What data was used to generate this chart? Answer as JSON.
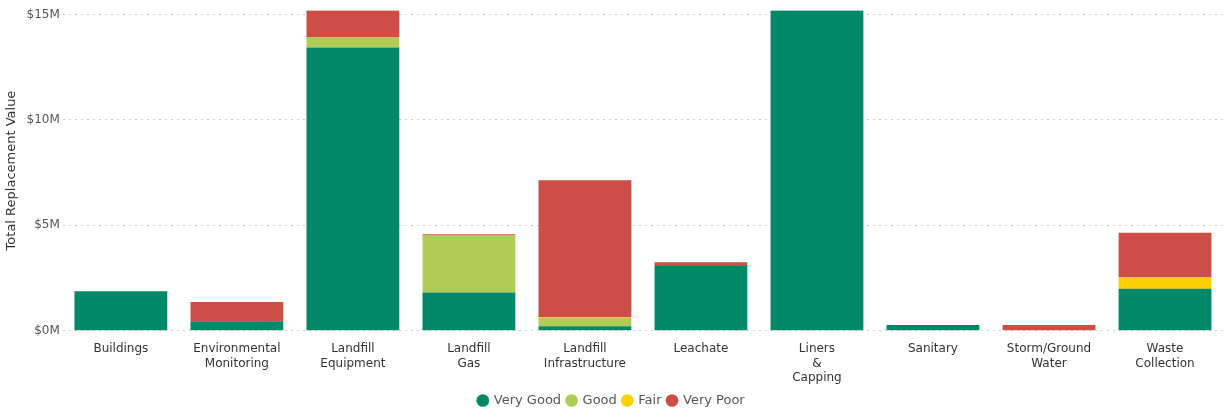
{
  "chart_data": {
    "type": "bar",
    "stacked": true,
    "ylabel": "Total Replacement Value",
    "categories": [
      "Buildings",
      "Environmental Monitoring",
      "Landfill Equipment",
      "Landfill Gas",
      "Landfill Infrastructure",
      "Leachate",
      "Liners & Capping",
      "Sanitary",
      "Storm/Ground Water",
      "Waste Collection"
    ],
    "series": [
      {
        "name": "Very Good",
        "color": "#008868",
        "values": [
          1.88,
          0.45,
          13.43,
          1.82,
          0.21,
          3.07,
          15.18,
          0.27,
          null,
          1.99
        ]
      },
      {
        "name": "Good",
        "color": "#b0cb56",
        "values": [
          null,
          null,
          0.5,
          2.7,
          0.4,
          null,
          null,
          null,
          null,
          null
        ]
      },
      {
        "name": "Fair",
        "color": "#fccf00",
        "values": [
          null,
          null,
          null,
          null,
          0.05,
          null,
          null,
          null,
          null,
          0.56
        ]
      },
      {
        "name": "Very Poor",
        "color": "#cd4d47",
        "values": [
          null,
          0.91,
          1.25,
          0.06,
          6.48,
          0.18,
          null,
          null,
          0.27,
          2.1
        ]
      }
    ],
    "ylim": [
      0,
      15.2
    ],
    "yticks": [
      {
        "value": 0,
        "label": "$0M"
      },
      {
        "value": 5,
        "label": "$5M"
      },
      {
        "value": 10,
        "label": "$10M"
      },
      {
        "value": 15,
        "label": "$15M"
      }
    ],
    "grid": "y",
    "legend": "bottom"
  }
}
